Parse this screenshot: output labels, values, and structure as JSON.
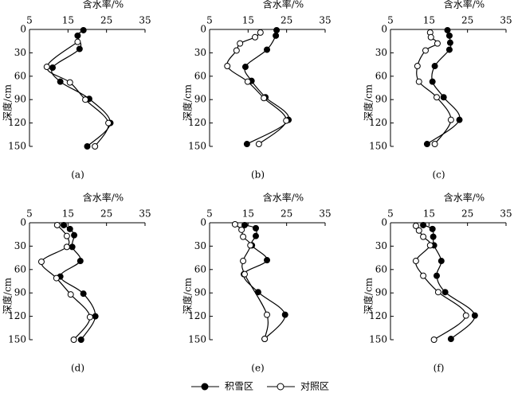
{
  "chart_data": [
    {
      "type": "line",
      "title": "含水率/%",
      "ylabel": "深度/cm",
      "label": "(a)",
      "xlim": [
        5,
        35
      ],
      "xticks": [
        5,
        15,
        25,
        35
      ],
      "ylim": [
        0,
        150
      ],
      "yticks": [
        0,
        30,
        60,
        90,
        120,
        150
      ],
      "series": [
        {
          "name": "积雪区",
          "color": "#000000",
          "marker": "filled",
          "x": [
            19,
            17.5,
            18,
            11,
            13,
            20.5,
            26,
            20
          ],
          "y": [
            1,
            8,
            25,
            49,
            67,
            89,
            120,
            150
          ]
        },
        {
          "name": "对照区",
          "color": "#000000",
          "marker": "open",
          "x": [
            17.5,
            9.5,
            15.5,
            19.5,
            25.5,
            22
          ],
          "y": [
            16,
            48,
            68,
            90,
            120,
            150
          ]
        }
      ]
    },
    {
      "type": "line",
      "title": "含水率/%",
      "ylabel": "深度/cm",
      "label": "(b)",
      "xlim": [
        5,
        35
      ],
      "xticks": [
        5,
        15,
        25,
        35
      ],
      "ylim": [
        0,
        150
      ],
      "yticks": [
        0,
        30,
        60,
        90,
        120,
        150
      ],
      "series": [
        {
          "name": "积雪区",
          "color": "#000000",
          "marker": "filled",
          "x": [
            22.4,
            22.2,
            19.9,
            14.3,
            15.9,
            19.5,
            25.5,
            14.7
          ],
          "y": [
            1,
            8,
            26,
            48,
            66,
            87,
            116,
            147
          ]
        },
        {
          "name": "对照区",
          "color": "#000000",
          "marker": "open",
          "x": [
            18.2,
            16.8,
            12.9,
            12,
            9.6,
            14.9,
            19.1,
            24.9,
            17.8
          ],
          "y": [
            4,
            10,
            18,
            27,
            47,
            67,
            88,
            117,
            147
          ]
        }
      ]
    },
    {
      "type": "line",
      "title": "含水率/%",
      "ylabel": "深度/cm",
      "label": "(c)",
      "xlim": [
        5,
        35
      ],
      "xticks": [
        5,
        15,
        25,
        35
      ],
      "ylim": [
        0,
        150
      ],
      "yticks": [
        0,
        30,
        60,
        90,
        120,
        150
      ],
      "series": [
        {
          "name": "积雪区",
          "color": "#000000",
          "marker": "filled",
          "x": [
            19.8,
            20.3,
            20.5,
            20.3,
            16.5,
            15.9,
            18.8,
            22.9,
            14.5
          ],
          "y": [
            1,
            8,
            17,
            26,
            47,
            67,
            87,
            116,
            147
          ]
        },
        {
          "name": "对照区",
          "color": "#000000",
          "marker": "open",
          "x": [
            15.3,
            15.5,
            17.2,
            14.1,
            12,
            12.4,
            17,
            20.7,
            16.5
          ],
          "y": [
            4,
            10,
            18,
            27,
            47,
            67,
            87,
            116,
            147
          ]
        }
      ]
    },
    {
      "type": "line",
      "title": "含水率/%",
      "ylabel": "深度/cm",
      "label": "(d)",
      "xlim": [
        5,
        35
      ],
      "xticks": [
        5,
        15,
        25,
        35
      ],
      "ylim": [
        0,
        150
      ],
      "yticks": [
        0,
        30,
        60,
        90,
        120,
        150
      ],
      "series": [
        {
          "name": "积雪区",
          "color": "#000000",
          "marker": "filled",
          "x": [
            13.9,
            15.5,
            16.6,
            16.1,
            18.2,
            13,
            19,
            22.1,
            18.4
          ],
          "y": [
            3,
            8,
            16,
            31,
            49,
            69,
            91,
            120,
            150
          ]
        },
        {
          "name": "对照区",
          "color": "#000000",
          "marker": "open",
          "x": [
            12.2,
            14.7,
            14.7,
            8.1,
            12,
            15.7,
            20.7,
            16.5
          ],
          "y": [
            3,
            17,
            31,
            50,
            71,
            92,
            121,
            150
          ]
        }
      ]
    },
    {
      "type": "line",
      "title": "含水率/%",
      "ylabel": "深度/cm",
      "label": "(e)",
      "xlim": [
        5,
        35
      ],
      "xticks": [
        5,
        15,
        25,
        35
      ],
      "ylim": [
        0,
        150
      ],
      "yticks": [
        0,
        30,
        60,
        90,
        120,
        150
      ],
      "series": [
        {
          "name": "积雪区",
          "color": "#000000",
          "marker": "filled",
          "x": [
            14.1,
            17,
            17,
            16,
            19.9,
            13.9,
            17.6,
            24.6,
            19.3
          ],
          "y": [
            3,
            7,
            17,
            29,
            48,
            66,
            89,
            118,
            149
          ]
        },
        {
          "name": "对照区",
          "color": "#000000",
          "marker": "open",
          "x": [
            11.6,
            13.3,
            13.7,
            15.6,
            13.7,
            14.1,
            19.9,
            19.3
          ],
          "y": [
            2,
            9,
            18,
            29,
            49,
            66,
            118,
            149
          ]
        }
      ]
    },
    {
      "type": "line",
      "title": "含水率/%",
      "ylabel": "深度/cm",
      "label": "(f)",
      "xlim": [
        5,
        35
      ],
      "xticks": [
        5,
        15,
        25,
        35
      ],
      "ylim": [
        0,
        150
      ],
      "yticks": [
        0,
        30,
        60,
        90,
        120,
        150
      ],
      "series": [
        {
          "name": "积雪区",
          "color": "#000000",
          "marker": "filled",
          "x": [
            13.5,
            15.9,
            16.1,
            16.3,
            18.2,
            17,
            19.2,
            26.9,
            20.7
          ],
          "y": [
            3,
            8,
            18,
            29,
            49,
            68,
            89,
            119,
            149
          ]
        },
        {
          "name": "对照区",
          "color": "#000000",
          "marker": "open",
          "x": [
            11.6,
            12.4,
            13.5,
            15.3,
            11.6,
            13.5,
            17.4,
            24.6,
            16.3
          ],
          "y": [
            4,
            10,
            18,
            29,
            49,
            68,
            89,
            119,
            150
          ]
        }
      ]
    }
  ]
}
